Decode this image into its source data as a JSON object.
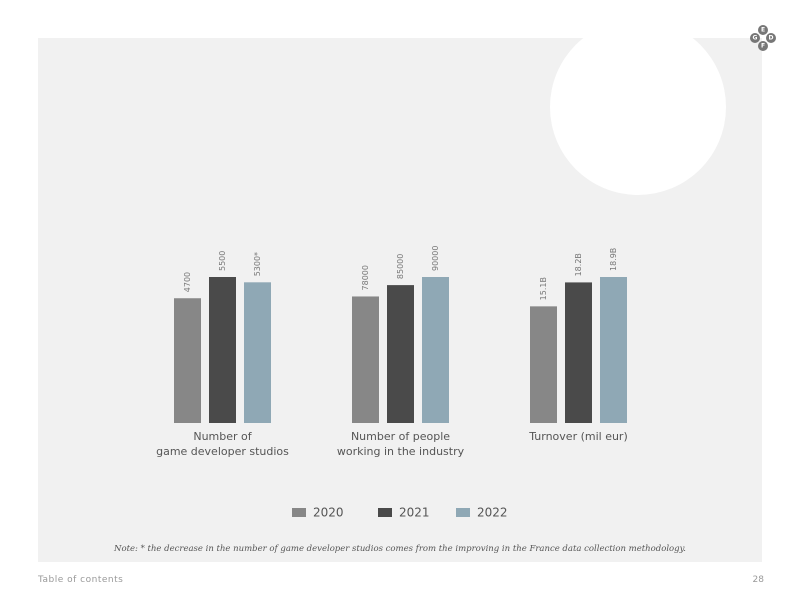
{
  "chart_data": [
    {
      "type": "bar",
      "title": "Number of\ngame developer studios",
      "values": [
        4700,
        5500,
        5300
      ],
      "value_labels": [
        "4700",
        "5500",
        "5300*"
      ]
    },
    {
      "type": "bar",
      "title": "Number of people\nworking in the industry",
      "values": [
        78000,
        85000,
        90000
      ]
    },
    {
      "type": "bar",
      "title": "Turnover (mil eur)",
      "values": [
        15.1,
        18.2,
        18.9
      ],
      "value_labels": [
        "15.1B",
        "18.2B",
        "18.9B"
      ]
    }
  ],
  "legend": [
    {
      "name": "2020",
      "color": "#878787"
    },
    {
      "name": "2021",
      "color": "#4a4a4a"
    },
    {
      "name": "2022",
      "color": "#8fa8b5"
    }
  ],
  "note": "Note: * the decrease in the number of game developer studios comes from the improving in the France data collection methodology.",
  "footer": {
    "link": "Table of contents",
    "page": "28"
  },
  "logo": [
    "E",
    "G",
    "D",
    "F"
  ]
}
